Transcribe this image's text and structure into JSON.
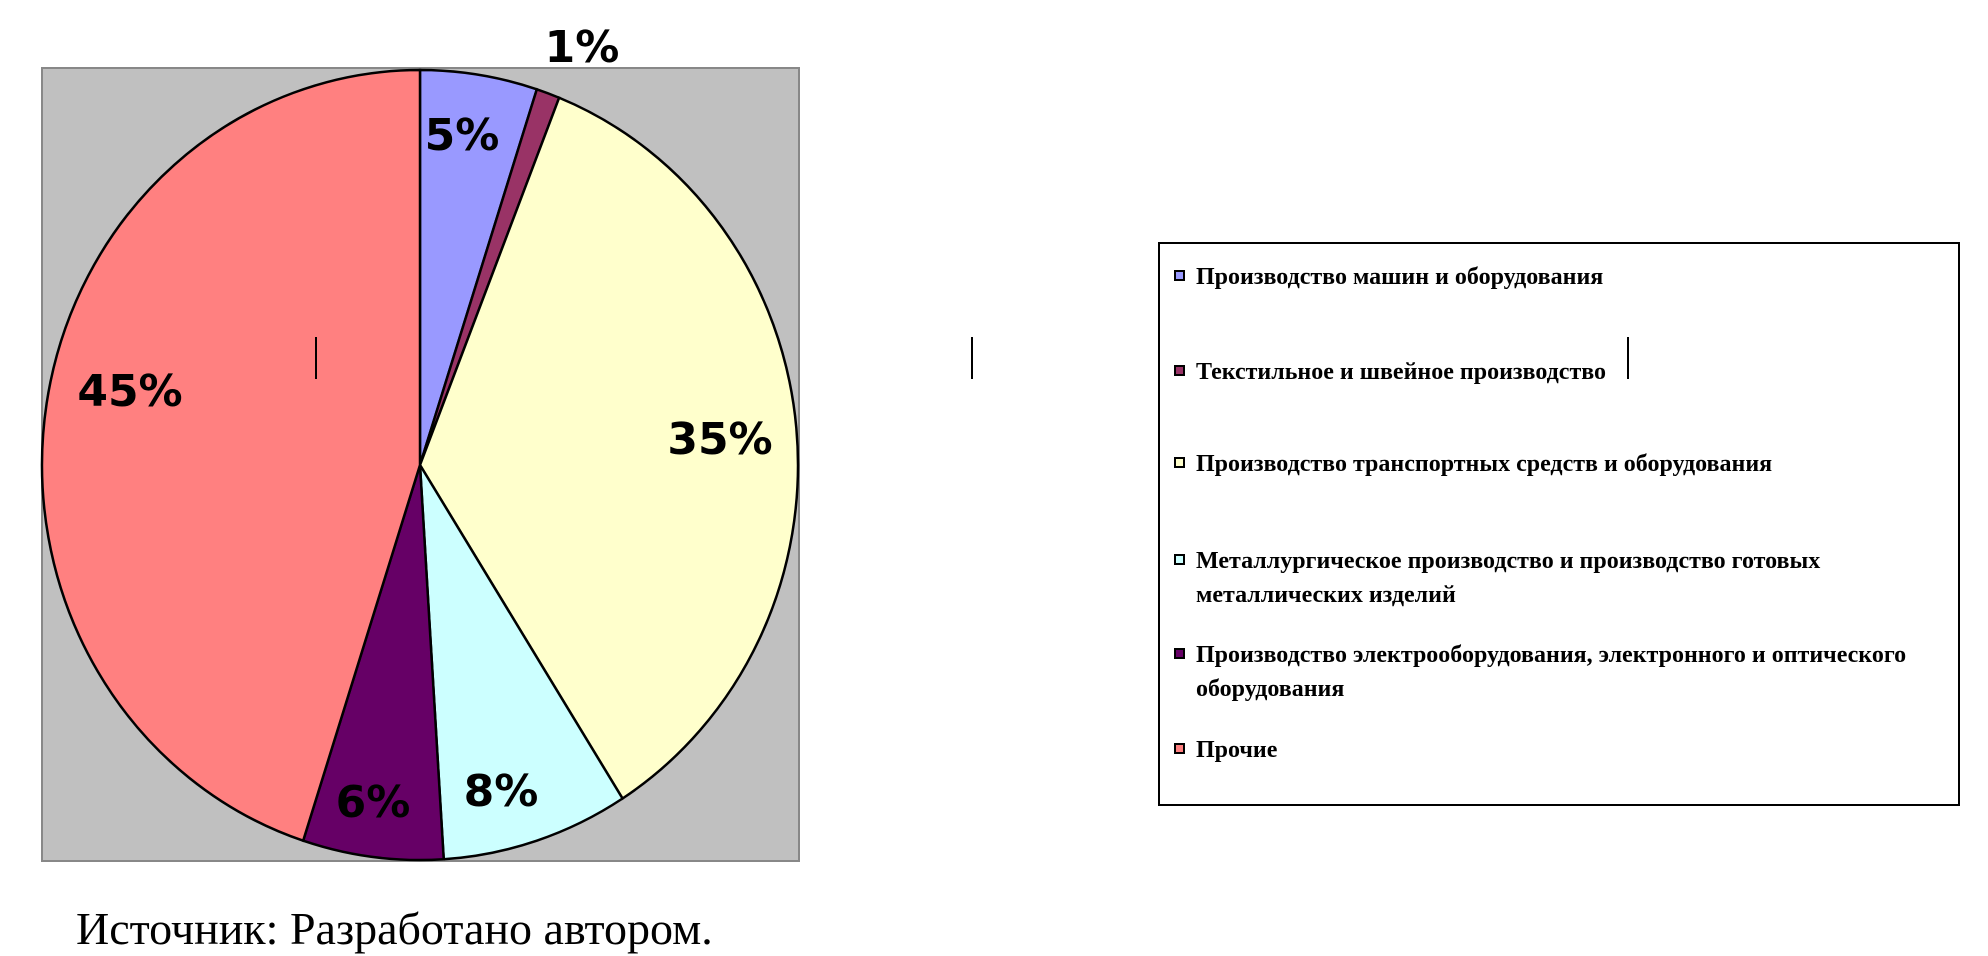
{
  "chart_data": {
    "type": "pie",
    "categories": [
      "Производство машин и оборудования",
      "Текстильное и швейное производство",
      "Производство транспортных средств и оборудования",
      "Металлургическое производство и производство готовых металлических изделий",
      "Производство электрооборудования, электронного и оптического оборудования",
      "Прочие"
    ],
    "values": [
      5,
      1,
      35,
      8,
      6,
      45
    ],
    "data_labels": [
      "5%",
      "1%",
      "35%",
      "8%",
      "6%",
      "45%"
    ],
    "colors": [
      "#9999ff",
      "#993366",
      "#ffffcc",
      "#ccffff",
      "#660066",
      "#ff8080"
    ],
    "plot_background": "#c0c0c0",
    "legend_placement": "right",
    "start_angle": "12 o'clock, clockwise"
  },
  "source": "Источник: Разработано автором."
}
